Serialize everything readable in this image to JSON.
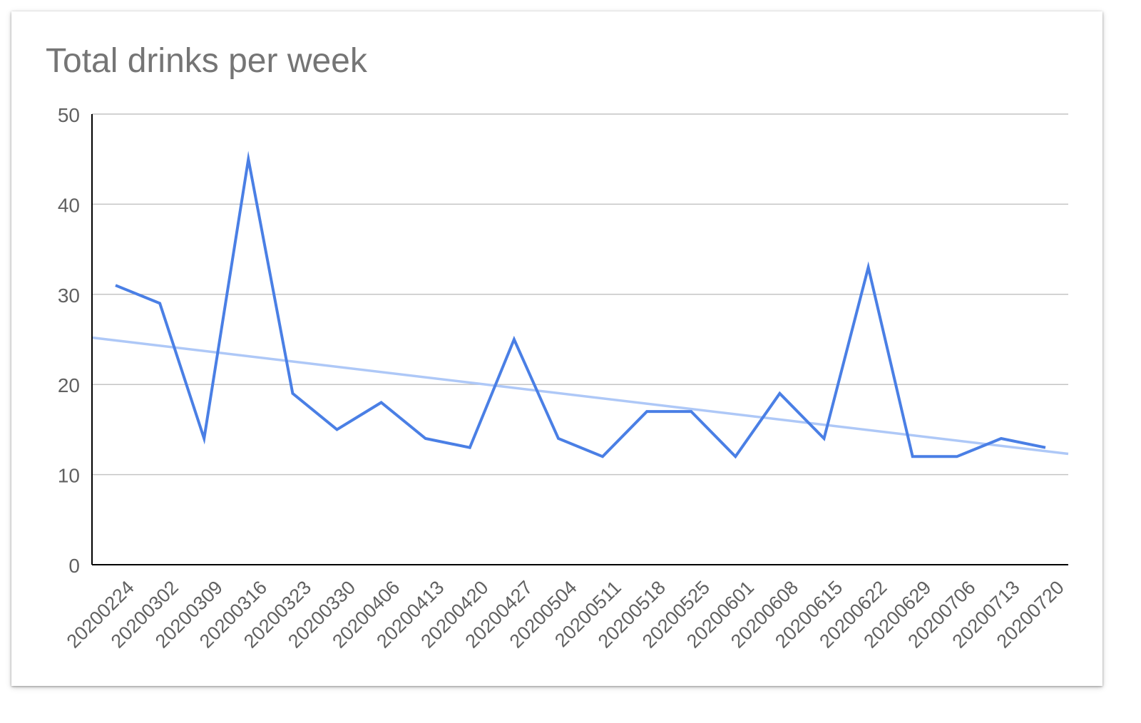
{
  "chart_data": {
    "type": "line",
    "title": "Total drinks per week",
    "xlabel": "",
    "ylabel": "",
    "categories": [
      "20200224",
      "20200302",
      "20200309",
      "20200316",
      "20200323",
      "20200330",
      "20200406",
      "20200413",
      "20200420",
      "20200427",
      "20200504",
      "20200511",
      "20200518",
      "20200525",
      "20200601",
      "20200608",
      "20200615",
      "20200622",
      "20200629",
      "20200706",
      "20200713",
      "20200720"
    ],
    "series": [
      {
        "values": [
          31,
          29,
          14,
          45,
          19,
          15,
          18,
          14,
          13,
          25,
          14,
          12,
          17,
          17,
          12,
          19,
          14,
          33,
          12,
          12,
          14,
          13
        ],
        "color": "#4a7fe5"
      }
    ],
    "trendline": {
      "type": "linear",
      "color": "#aec8f7",
      "start_value": 25.2,
      "end_value": 12.3
    },
    "ylim": [
      0,
      50
    ],
    "y_ticks": [
      0,
      10,
      20,
      30,
      40,
      50
    ],
    "grid": true,
    "legend": "none",
    "colors": {
      "grid": "#c4c4c4",
      "axis": "#000000",
      "tick_label": "#616161",
      "title": "#757575"
    }
  }
}
